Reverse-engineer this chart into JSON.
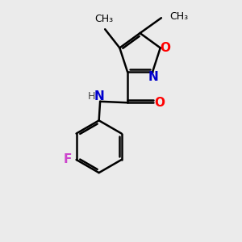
{
  "background_color": "#ebebeb",
  "bond_color": "#000000",
  "bond_width": 1.8,
  "figsize": [
    3.0,
    3.0
  ],
  "dpi": 100,
  "colors": {
    "O": "#ff0000",
    "N": "#0000cc",
    "F": "#cc44cc",
    "C": "#000000",
    "H": "#444444"
  }
}
